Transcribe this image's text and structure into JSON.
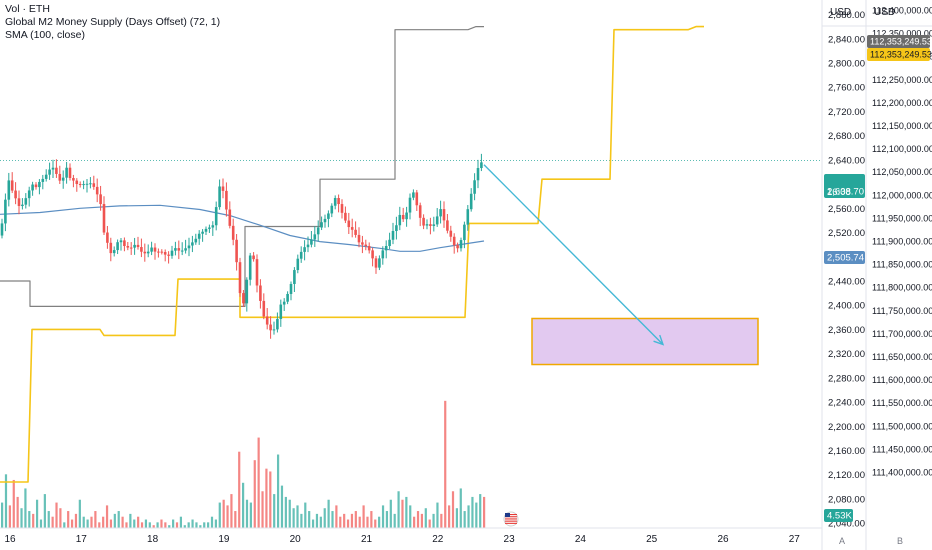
{
  "legend": {
    "line1": "Vol · ETH",
    "line2": "Global M2 Money Supply (Days Offset) (72, 1)",
    "line3": "SMA (100, close)"
  },
  "axis_headers": {
    "left": "USD",
    "right": "USD"
  },
  "corner": {
    "a": "A",
    "b": "B"
  },
  "colors": {
    "up": "#26a69a",
    "down": "#ef5350",
    "sma": "#5b8ec2",
    "m2_offset": "#f5c518",
    "m2_raw": "#808080",
    "arrow": "#45b8d6",
    "zone_fill": "#e2c9f0",
    "zone_border": "#f0a800",
    "price_line": "#26a69a"
  },
  "chart_data": {
    "type": "candlestick",
    "x_axis": {
      "ticks": [
        "16",
        "17",
        "18",
        "19",
        "20",
        "21",
        "22",
        "23",
        "24",
        "25",
        "26",
        "27"
      ]
    },
    "left_axis": {
      "unit": "USD",
      "ticks": [
        "2,880.00",
        "2,840.00",
        "2,800.00",
        "2,760.00",
        "2,720.00",
        "2,680.00",
        "2,640.00",
        "2,600.00",
        "2,560.00",
        "2,520.00",
        "2,480.00",
        "2,440.00",
        "2,400.00",
        "2,360.00",
        "2,320.00",
        "2,280.00",
        "2,240.00",
        "2,200.00",
        "2,160.00",
        "2,120.00",
        "2,080.00",
        "2,040.00"
      ],
      "ylim": [
        2032,
        2904
      ]
    },
    "right_axis": {
      "unit": "USD",
      "ticks": [
        "112,400,000.00",
        "112,350,000.00",
        "112,300,000.00",
        "112,250,000.00",
        "112,200,000.00",
        "112,150,000.00",
        "112,100,000.00",
        "112,050,000.00",
        "112,000,000.00",
        "111,950,000.00",
        "111,900,000.00",
        "111,850,000.00",
        "111,800,000.00",
        "111,750,000.00",
        "111,700,000.00",
        "111,650,000.00",
        "111,600,000.00",
        "111,550,000.00",
        "111,500,000.00",
        "111,450,000.00",
        "111,400,000.00"
      ]
    },
    "labels": {
      "price": "2,638.70",
      "countdown": "16:08",
      "sma": "2,505.74",
      "volume": "4.53K",
      "m2_raw": "112,353,249.53",
      "m2_offset": "112,353,249.53"
    },
    "price_path": [
      [
        0,
        2515
      ],
      [
        4,
        2555
      ],
      [
        8,
        2610
      ],
      [
        12,
        2590
      ],
      [
        16,
        2575
      ],
      [
        20,
        2560
      ],
      [
        24,
        2570
      ],
      [
        28,
        2585
      ],
      [
        32,
        2600
      ],
      [
        36,
        2595
      ],
      [
        40,
        2605
      ],
      [
        44,
        2610
      ],
      [
        48,
        2620
      ],
      [
        52,
        2630
      ],
      [
        56,
        2618
      ],
      [
        60,
        2605
      ],
      [
        64,
        2612
      ],
      [
        66,
        2630
      ],
      [
        70,
        2610
      ],
      [
        74,
        2605
      ],
      [
        78,
        2598
      ],
      [
        82,
        2600
      ],
      [
        86,
        2600
      ],
      [
        90,
        2602
      ],
      [
        94,
        2595
      ],
      [
        98,
        2580
      ],
      [
        102,
        2560
      ],
      [
        104,
        2520
      ],
      [
        108,
        2500
      ],
      [
        112,
        2480
      ],
      [
        116,
        2500
      ],
      [
        120,
        2510
      ],
      [
        124,
        2498
      ],
      [
        128,
        2495
      ],
      [
        132,
        2495
      ],
      [
        136,
        2502
      ],
      [
        140,
        2490
      ],
      [
        144,
        2485
      ],
      [
        148,
        2488
      ],
      [
        152,
        2496
      ],
      [
        156,
        2486
      ],
      [
        160,
        2490
      ],
      [
        164,
        2485
      ],
      [
        168,
        2480
      ],
      [
        172,
        2490
      ],
      [
        176,
        2495
      ],
      [
        180,
        2488
      ],
      [
        184,
        2492
      ],
      [
        188,
        2497
      ],
      [
        192,
        2503
      ],
      [
        196,
        2510
      ],
      [
        200,
        2520
      ],
      [
        204,
        2522
      ],
      [
        208,
        2530
      ],
      [
        212,
        2525
      ],
      [
        216,
        2560
      ],
      [
        220,
        2600
      ],
      [
        224,
        2585
      ],
      [
        228,
        2540
      ],
      [
        232,
        2520
      ],
      [
        236,
        2480
      ],
      [
        240,
        2420
      ],
      [
        244,
        2400
      ],
      [
        248,
        2460
      ],
      [
        252,
        2500
      ],
      [
        256,
        2440
      ],
      [
        260,
        2410
      ],
      [
        264,
        2380
      ],
      [
        268,
        2365
      ],
      [
        272,
        2355
      ],
      [
        276,
        2365
      ],
      [
        280,
        2400
      ],
      [
        284,
        2405
      ],
      [
        288,
        2420
      ],
      [
        292,
        2440
      ],
      [
        296,
        2470
      ],
      [
        300,
        2485
      ],
      [
        304,
        2495
      ],
      [
        308,
        2500
      ],
      [
        312,
        2510
      ],
      [
        316,
        2520
      ],
      [
        320,
        2535
      ],
      [
        324,
        2540
      ],
      [
        328,
        2550
      ],
      [
        332,
        2565
      ],
      [
        336,
        2580
      ],
      [
        340,
        2560
      ],
      [
        344,
        2545
      ],
      [
        348,
        2530
      ],
      [
        352,
        2525
      ],
      [
        356,
        2515
      ],
      [
        360,
        2500
      ],
      [
        364,
        2500
      ],
      [
        368,
        2495
      ],
      [
        372,
        2480
      ],
      [
        376,
        2462
      ],
      [
        380,
        2480
      ],
      [
        384,
        2495
      ],
      [
        388,
        2500
      ],
      [
        392,
        2520
      ],
      [
        396,
        2530
      ],
      [
        400,
        2550
      ],
      [
        404,
        2540
      ],
      [
        408,
        2560
      ],
      [
        412,
        2595
      ],
      [
        416,
        2570
      ],
      [
        420,
        2545
      ],
      [
        424,
        2530
      ],
      [
        428,
        2535
      ],
      [
        432,
        2528
      ],
      [
        436,
        2540
      ],
      [
        440,
        2562
      ],
      [
        444,
        2540
      ],
      [
        448,
        2520
      ],
      [
        452,
        2510
      ],
      [
        456,
        2490
      ],
      [
        460,
        2500
      ],
      [
        464,
        2530
      ],
      [
        468,
        2560
      ],
      [
        472,
        2590
      ],
      [
        476,
        2615
      ],
      [
        480,
        2638
      ],
      [
        484,
        2632
      ]
    ],
    "sma_path": [
      [
        0,
        2550
      ],
      [
        40,
        2553
      ],
      [
        80,
        2560
      ],
      [
        120,
        2564
      ],
      [
        160,
        2565
      ],
      [
        200,
        2558
      ],
      [
        230,
        2548
      ],
      [
        260,
        2532
      ],
      [
        290,
        2515
      ],
      [
        320,
        2505
      ],
      [
        350,
        2500
      ],
      [
        380,
        2494
      ],
      [
        400,
        2489
      ],
      [
        420,
        2489
      ],
      [
        440,
        2495
      ],
      [
        460,
        2500
      ],
      [
        484,
        2506
      ]
    ],
    "m2_raw_path": [
      [
        0,
        2440
      ],
      [
        30,
        2440
      ],
      [
        30,
        2398
      ],
      [
        100,
        2398
      ],
      [
        100,
        2398
      ],
      [
        245,
        2398
      ],
      [
        245,
        2530
      ],
      [
        320,
        2530
      ],
      [
        320,
        2608
      ],
      [
        395,
        2608
      ],
      [
        395,
        2855
      ],
      [
        466,
        2855
      ],
      [
        468,
        2855
      ],
      [
        476,
        2860
      ],
      [
        484,
        2860
      ]
    ],
    "m2_offset_path": [
      [
        0,
        2108
      ],
      [
        28,
        2108
      ],
      [
        32,
        2360
      ],
      [
        100,
        2360
      ],
      [
        104,
        2350
      ],
      [
        175,
        2350
      ],
      [
        178,
        2443
      ],
      [
        240,
        2443
      ],
      [
        240,
        2380
      ],
      [
        465,
        2380
      ],
      [
        469,
        2535
      ],
      [
        538,
        2535
      ],
      [
        542,
        2608
      ],
      [
        610,
        2608
      ],
      [
        614,
        2855
      ],
      [
        686,
        2855
      ],
      [
        688,
        2855
      ],
      [
        696,
        2860
      ],
      [
        704,
        2860
      ]
    ],
    "projection_arrow": {
      "from": [
        2632,
        484
      ],
      "to_x_day": 663,
      "to_price": 2335
    },
    "target_zone": {
      "x_from": 532,
      "x_to": 758,
      "price_top": 2378,
      "price_bottom": 2302
    },
    "volume": {
      "max": 4.6,
      "values": [
        0.9,
        1.9,
        0.8,
        1.7,
        1.1,
        0.7,
        1.4,
        0.6,
        0.5,
        1.0,
        0.3,
        1.2,
        0.6,
        0.4,
        0.9,
        0.7,
        0.2,
        0.6,
        0.3,
        0.5,
        1.0,
        0.4,
        0.3,
        0.4,
        0.6,
        0.2,
        0.4,
        0.8,
        0.3,
        0.5,
        0.6,
        0.4,
        0.2,
        0.5,
        0.3,
        0.4,
        0.2,
        0.3,
        0.2,
        0.1,
        0.2,
        0.3,
        0.2,
        0.1,
        0.3,
        0.2,
        0.4,
        0.1,
        0.2,
        0.3,
        0.2,
        0.1,
        0.2,
        0.2,
        0.4,
        0.3,
        0.9,
        1.0,
        0.8,
        1.2,
        0.6,
        2.7,
        1.6,
        1.0,
        0.9,
        2.4,
        3.2,
        1.3,
        2.1,
        2.0,
        1.2,
        2.6,
        1.5,
        1.1,
        1.0,
        0.7,
        0.8,
        0.5,
        0.9,
        0.6,
        0.3,
        0.5,
        0.4,
        0.7,
        1.0,
        0.6,
        0.8,
        0.4,
        0.5,
        0.3,
        0.5,
        0.6,
        0.4,
        0.8,
        0.4,
        0.6,
        0.3,
        0.4,
        0.8,
        0.6,
        1.0,
        0.5,
        1.3,
        1.0,
        1.1,
        0.8,
        0.4,
        0.6,
        0.5,
        0.7,
        0.3,
        0.5,
        0.9,
        0.5,
        4.5,
        0.8,
        1.3,
        0.7,
        1.4,
        0.6,
        0.8,
        1.1,
        0.9,
        1.2,
        1.1
      ]
    }
  }
}
